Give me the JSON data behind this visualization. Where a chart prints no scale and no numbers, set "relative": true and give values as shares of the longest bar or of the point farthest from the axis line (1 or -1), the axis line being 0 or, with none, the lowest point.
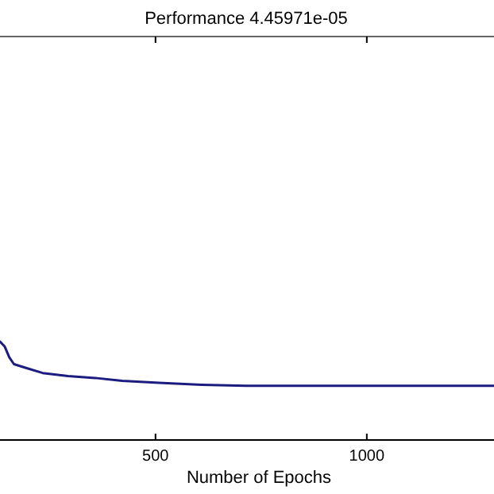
{
  "chart_data": {
    "type": "line",
    "title": "Performance  4.45971e-05",
    "xlabel": "Number of Epochs",
    "relative": true,
    "xlim": [
      132,
      1301
    ],
    "xticks": [
      500,
      1000
    ],
    "series": [
      {
        "color": "#1c1c80",
        "x": [
          132,
          143,
          154,
          165,
          195,
          233,
          293,
          357,
          421,
          508,
          609,
          714,
          1301
        ],
        "values": [
          1.0,
          0.95,
          0.84,
          0.77,
          0.73,
          0.68,
          0.65,
          0.63,
          0.6,
          0.58,
          0.56,
          0.55,
          0.55
        ]
      }
    ]
  }
}
